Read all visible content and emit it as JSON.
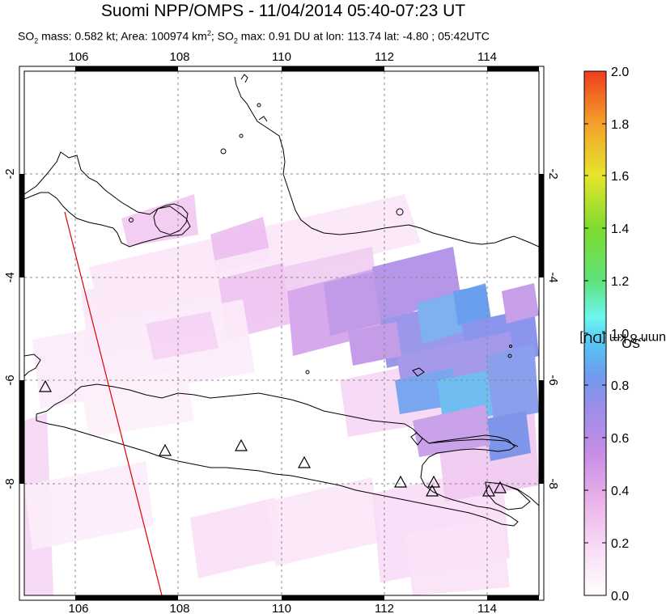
{
  "title": "Suomi NPP/OMPS - 11/04/2014 05:40-07:23 UT",
  "subtitle": {
    "p1": "SO",
    "p1_sub": "2",
    "p2": " mass: 0.582 kt; Area: 100974 km",
    "p2_sup": "2",
    "p3": "; SO",
    "p3_sub": "2",
    "p4": " max: 0.91 DU at lon: 113.74 lat: -4.80 ; 05:42UTC"
  },
  "map": {
    "lon_ticks": [
      "106",
      "108",
      "110",
      "112",
      "114"
    ],
    "lat_ticks_left": [
      "-2",
      "-4",
      "-6",
      "-8"
    ],
    "lat_ticks_right": [
      "-2",
      "-4",
      "-6",
      "-8"
    ],
    "volcano_marker": "triangle-icon",
    "orbit_track_color": "#e00000"
  },
  "colorbar": {
    "ticks": [
      "2.0",
      "1.8",
      "1.6",
      "1.4",
      "1.2",
      "1.0",
      "0.8",
      "0.6",
      "0.4",
      "0.2",
      "0.0"
    ],
    "label_a": "SO",
    "label_sub": "2",
    "label_b": " column 8 km [DU]",
    "colors": [
      "#fffefe",
      "#f7d7f5",
      "#e7a9e8",
      "#bb8ae6",
      "#6f9bee",
      "#52c8f3",
      "#6df6f0",
      "#5fe27a",
      "#7edb2f",
      "#e6e52c",
      "#f4a12b",
      "#ef3d1d"
    ]
  }
}
